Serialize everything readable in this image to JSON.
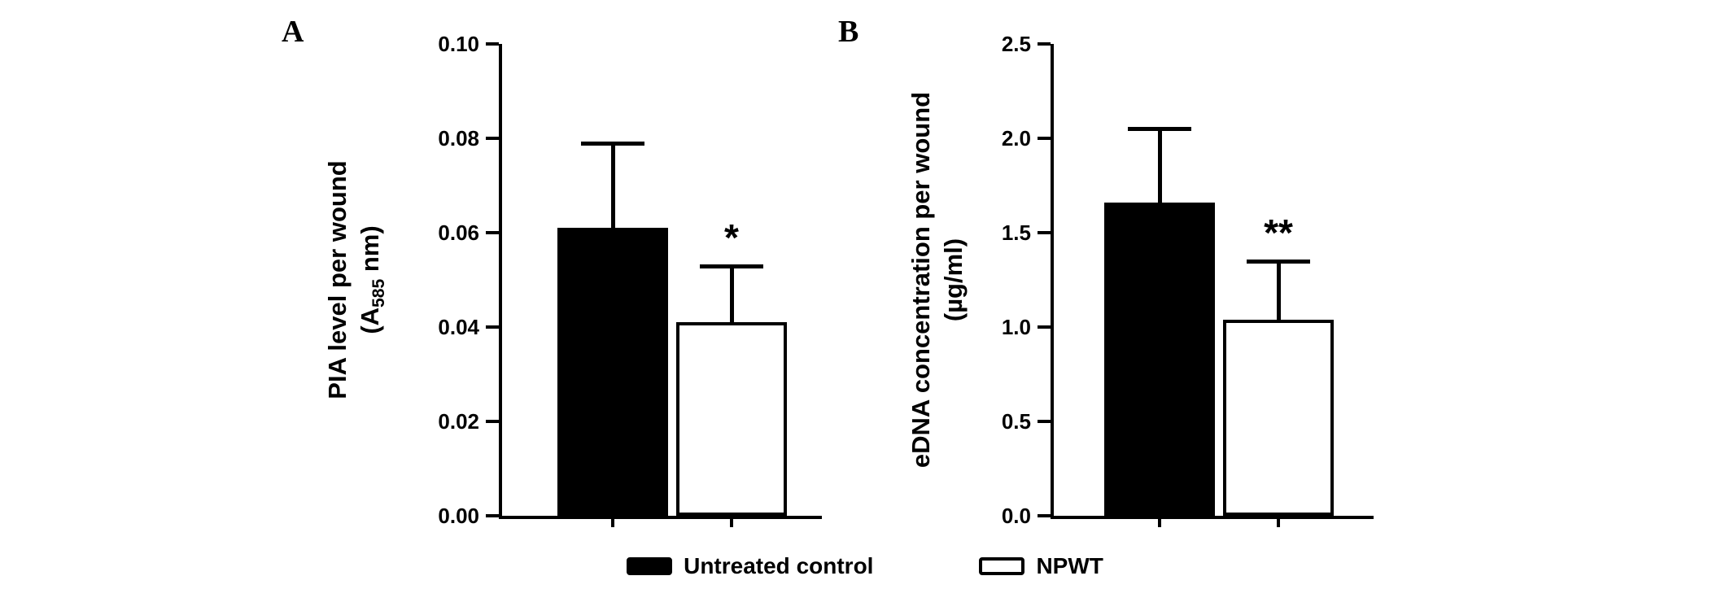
{
  "figure": {
    "panels": [
      {
        "label": "A",
        "ylabel_line1": "PIA level per wound",
        "ylabel_line2_prefix": "(A",
        "ylabel_line2_subscript": "585",
        "ylabel_line2_suffix": " nm)"
      },
      {
        "label": "B",
        "ylabel_line1": "eDNA concentration per wound",
        "ylabel_line2": "(µg/ml)"
      }
    ]
  },
  "legend": {
    "items": [
      {
        "label": "Untreated control",
        "fill": "#000000",
        "border": "#000000"
      },
      {
        "label": "NPWT",
        "fill": "#ffffff",
        "border": "#000000"
      }
    ]
  },
  "chart_data": [
    {
      "type": "bar",
      "panel": "A",
      "title": "",
      "xlabel": "",
      "ylabel": "PIA level per wound (A585 nm)",
      "categories": [
        "Untreated control",
        "NPWT"
      ],
      "values": [
        0.061,
        0.041
      ],
      "error_tops": [
        0.079,
        0.053
      ],
      "significance": [
        "",
        "*"
      ],
      "ylim": [
        0,
        0.1
      ],
      "yticks": [
        0,
        0.02,
        0.04,
        0.06,
        0.08,
        0.1
      ],
      "ytick_labels": [
        "0.00",
        "0.02",
        "0.04",
        "0.06",
        "0.08",
        "0.10"
      ],
      "bar_fills": [
        "#000000",
        "#ffffff"
      ],
      "bar_border": "#000000",
      "grid": false,
      "legend_position": "bottom"
    },
    {
      "type": "bar",
      "panel": "B",
      "title": "",
      "xlabel": "",
      "ylabel": "eDNA concentration per wound (µg/ml)",
      "categories": [
        "Untreated control",
        "NPWT"
      ],
      "values": [
        1.66,
        1.04
      ],
      "error_tops": [
        2.05,
        1.35
      ],
      "significance": [
        "",
        "**"
      ],
      "ylim": [
        0,
        2.5
      ],
      "yticks": [
        0,
        0.5,
        1.0,
        1.5,
        2.0,
        2.5
      ],
      "ytick_labels": [
        "0.0",
        "0.5",
        "1.0",
        "1.5",
        "2.0",
        "2.5"
      ],
      "bar_fills": [
        "#000000",
        "#ffffff"
      ],
      "bar_border": "#000000",
      "grid": false,
      "legend_position": "bottom"
    }
  ]
}
